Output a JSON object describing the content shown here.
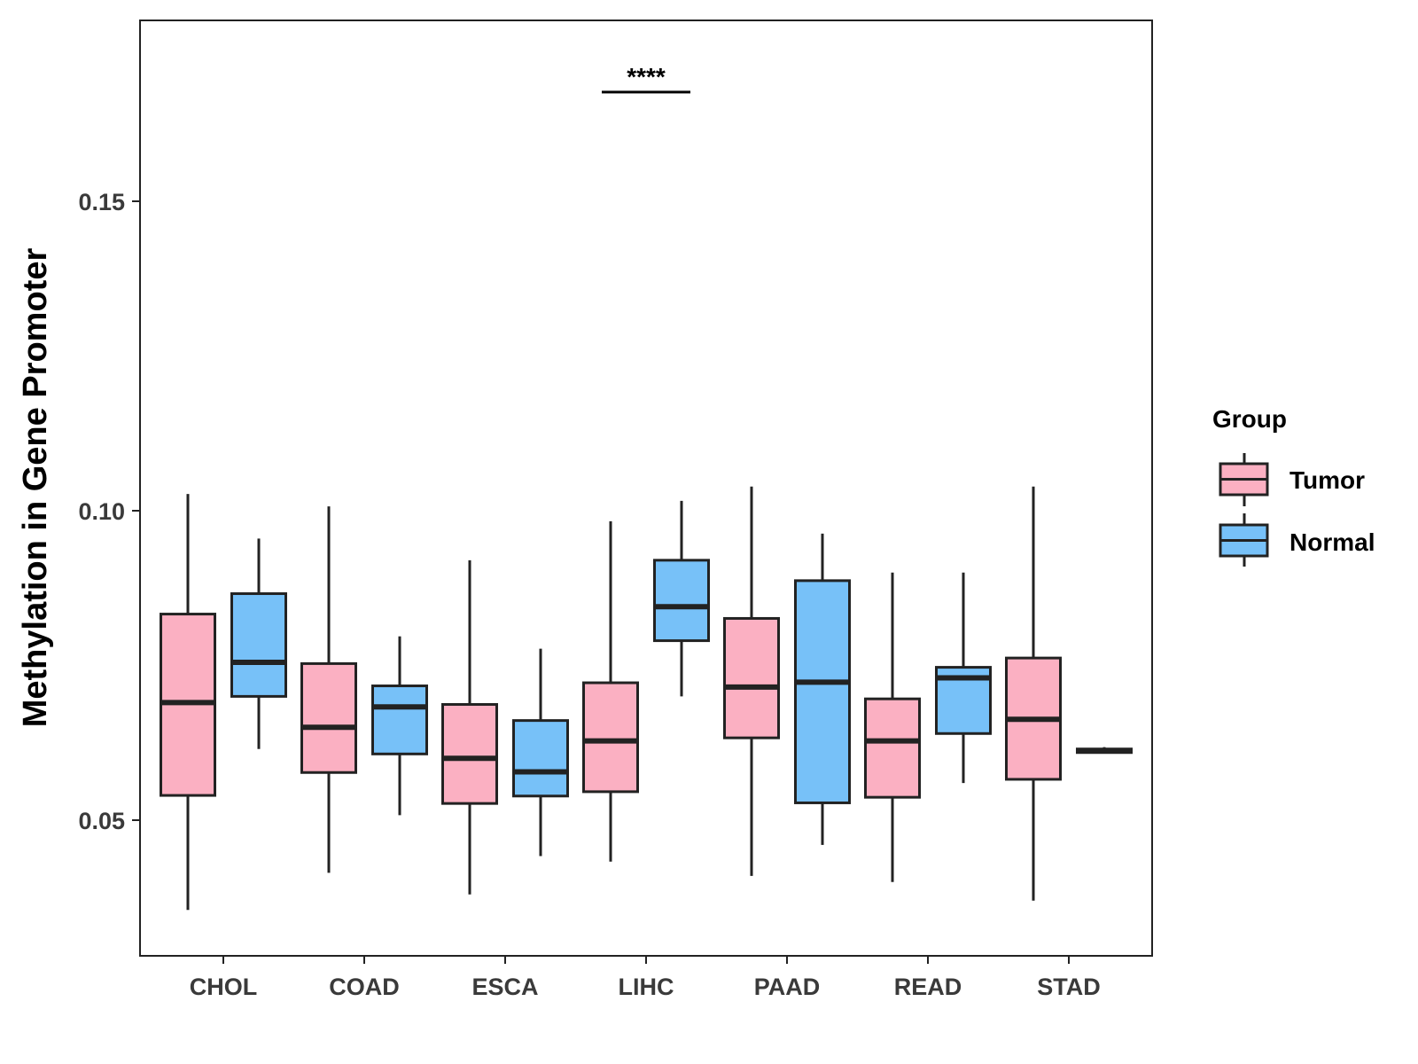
{
  "chart_data": {
    "type": "boxplot",
    "title": "",
    "xlabel": "",
    "ylabel": "Methylation in Gene Promoter",
    "ylim": [
      0.028,
      0.18
    ],
    "yticks": [
      0.05,
      0.1,
      0.15
    ],
    "ytick_labels": [
      "0.05",
      "0.10",
      "0.15"
    ],
    "categories": [
      "CHOL",
      "COAD",
      "ESCA",
      "LIHC",
      "PAAD",
      "READ",
      "STAD"
    ],
    "grid": false,
    "legend": {
      "title": "Group",
      "position": "right",
      "entries": [
        {
          "label": "Tumor",
          "color": "#fbb0c2"
        },
        {
          "label": "Normal",
          "color": "#77c1f8"
        }
      ]
    },
    "series": [
      {
        "name": "Tumor",
        "color": "#fbb0c2",
        "boxes": [
          {
            "category": "CHOL",
            "min": 0.0355,
            "q1": 0.054,
            "median": 0.069,
            "q3": 0.0833,
            "max": 0.1027
          },
          {
            "category": "COAD",
            "min": 0.0415,
            "q1": 0.0577,
            "median": 0.065,
            "q3": 0.0753,
            "max": 0.1007
          },
          {
            "category": "ESCA",
            "min": 0.038,
            "q1": 0.0527,
            "median": 0.06,
            "q3": 0.0687,
            "max": 0.092
          },
          {
            "category": "LIHC",
            "min": 0.0433,
            "q1": 0.0546,
            "median": 0.0628,
            "q3": 0.0722,
            "max": 0.0983
          },
          {
            "category": "PAAD",
            "min": 0.041,
            "q1": 0.0633,
            "median": 0.0715,
            "q3": 0.0826,
            "max": 0.1039
          },
          {
            "category": "READ",
            "min": 0.04,
            "q1": 0.0537,
            "median": 0.0628,
            "q3": 0.0696,
            "max": 0.09
          },
          {
            "category": "STAD",
            "min": 0.037,
            "q1": 0.0566,
            "median": 0.0663,
            "q3": 0.0762,
            "max": 0.1039
          }
        ]
      },
      {
        "name": "Normal",
        "color": "#77c1f8",
        "boxes": [
          {
            "category": "CHOL",
            "min": 0.0615,
            "q1": 0.07,
            "median": 0.0755,
            "q3": 0.0866,
            "max": 0.0955
          },
          {
            "category": "COAD",
            "min": 0.0508,
            "q1": 0.0607,
            "median": 0.0683,
            "q3": 0.0717,
            "max": 0.0797
          },
          {
            "category": "ESCA",
            "min": 0.0442,
            "q1": 0.0539,
            "median": 0.0578,
            "q3": 0.0661,
            "max": 0.0777
          },
          {
            "category": "LIHC",
            "min": 0.07,
            "q1": 0.079,
            "median": 0.0845,
            "q3": 0.092,
            "max": 0.1016
          },
          {
            "category": "PAAD",
            "min": 0.046,
            "q1": 0.0528,
            "median": 0.0723,
            "q3": 0.0887,
            "max": 0.0963
          },
          {
            "category": "READ",
            "min": 0.056,
            "q1": 0.064,
            "median": 0.073,
            "q3": 0.0747,
            "max": 0.09
          },
          {
            "category": "STAD",
            "min": 0.061,
            "q1": 0.061,
            "median": 0.0612,
            "q3": 0.0615,
            "max": 0.0618
          }
        ]
      }
    ],
    "annotations": [
      {
        "category": "LIHC",
        "text": "****",
        "y": 0.1705
      }
    ]
  }
}
